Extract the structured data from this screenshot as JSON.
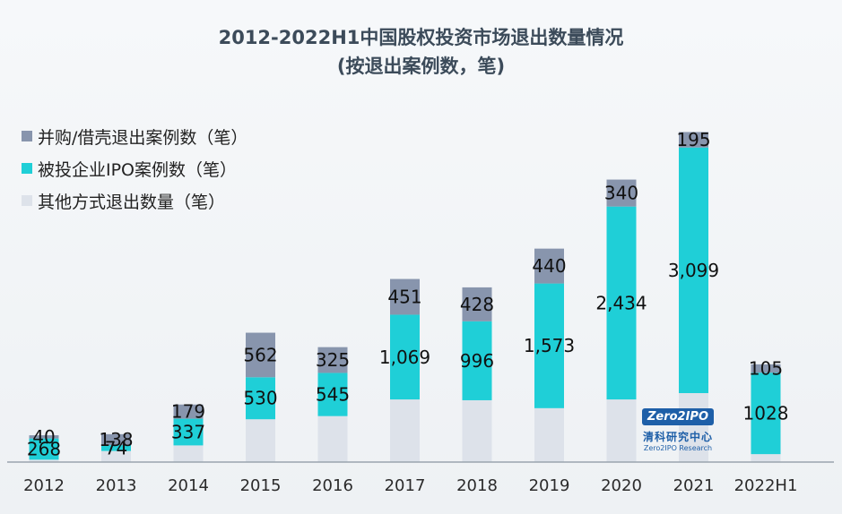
{
  "title_line1": "2012-2022H1中国股权投资市场退出数量情况",
  "title_line2": "(按退出案例数，笔)",
  "colors": {
    "ma": "#8895ad",
    "ipo": "#1fcfd7",
    "other": "#dde2ea",
    "axis": "#9aa4ae"
  },
  "logo": {
    "brand": "Zero2IPO",
    "cn": "清科研究中心",
    "en": "Zero2IPO Research"
  },
  "chart_data": {
    "type": "bar",
    "stacked": true,
    "title": "2012-2022H1中国股权投资市场退出数量情况",
    "subtitle": "(按退出案例数，笔)",
    "categories": [
      "2012",
      "2013",
      "2014",
      "2015",
      "2016",
      "2017",
      "2018",
      "2019",
      "2020",
      "2021",
      "2022H1"
    ],
    "series": [
      {
        "name": "其他方式退出数量（笔）",
        "key": "other",
        "values": [
          30,
          140,
          210,
          540,
          580,
          790,
          780,
          680,
          790,
          870,
          100
        ],
        "labels": [
          "",
          "",
          "",
          "",
          "",
          "",
          "",
          "",
          "",
          "",
          ""
        ]
      },
      {
        "name": "被投企业IPO案例数（笔）",
        "key": "ipo",
        "values": [
          268,
          74,
          337,
          530,
          545,
          1069,
          996,
          1573,
          2434,
          3099,
          1028
        ],
        "labels": [
          "268",
          "74",
          "337",
          "530",
          "545",
          "1,069",
          "996",
          "1,573",
          "2,434",
          "3,099",
          "1028"
        ]
      },
      {
        "name": "并购/借壳退出案例数（笔）",
        "key": "ma",
        "values": [
          40,
          138,
          179,
          562,
          325,
          451,
          428,
          440,
          340,
          195,
          105
        ],
        "labels": [
          "40",
          "138",
          "179",
          "562",
          "325",
          "451",
          "428",
          "440",
          "340",
          "195",
          "105"
        ]
      }
    ],
    "legend": {
      "position": "top-left",
      "entries": [
        "并购/借壳退出案例数（笔）",
        "被投企业IPO案例数（笔）",
        "其他方式退出数量（笔）"
      ]
    },
    "ylim": [
      0,
      4700
    ],
    "grid": false
  }
}
